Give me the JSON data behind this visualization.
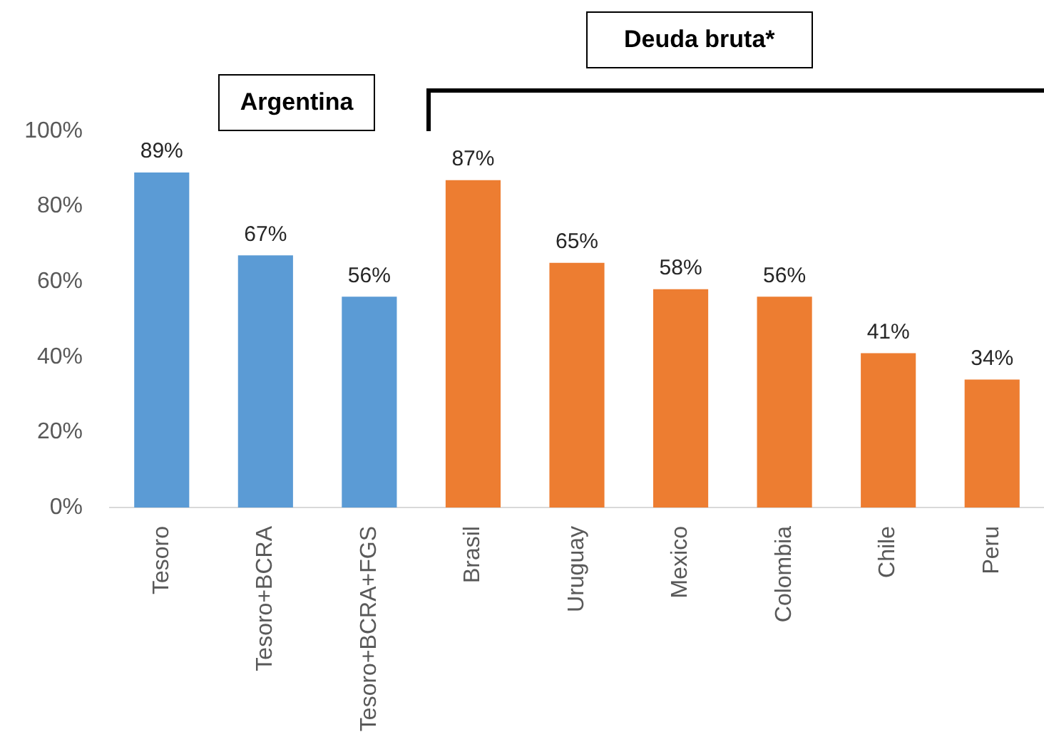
{
  "chart_data": {
    "type": "bar",
    "categories": [
      "Tesoro",
      "Tesoro+BCRA",
      "Tesoro+BCRA+FGS",
      "Brasil",
      "Uruguay",
      "Mexico",
      "Colombia",
      "Chile",
      "Peru"
    ],
    "values": [
      89,
      67,
      56,
      87,
      65,
      58,
      56,
      41,
      34
    ],
    "colors": [
      "#5b9bd5",
      "#5b9bd5",
      "#5b9bd5",
      "#ed7d31",
      "#ed7d31",
      "#ed7d31",
      "#ed7d31",
      "#ed7d31",
      "#ed7d31"
    ],
    "value_labels": [
      "89%",
      "67%",
      "56%",
      "87%",
      "65%",
      "58%",
      "56%",
      "41%",
      "34%"
    ],
    "ylim": [
      0,
      100
    ],
    "yticks": [
      {
        "value": 0,
        "label": "0%"
      },
      {
        "value": 20,
        "label": "20%"
      },
      {
        "value": 40,
        "label": "40%"
      },
      {
        "value": 60,
        "label": "60%"
      },
      {
        "value": 80,
        "label": "80%"
      },
      {
        "value": 100,
        "label": "100%"
      }
    ],
    "grid": false,
    "legend": false,
    "annotations": [
      "Argentina",
      "Deuda bruta*"
    ]
  }
}
